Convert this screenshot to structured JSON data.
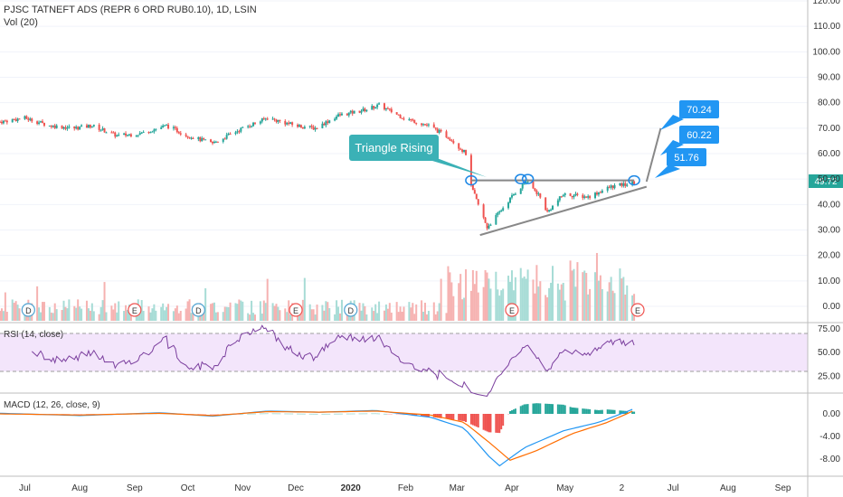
{
  "header": {
    "symbol": "PJSC TATNEFT ADS (REPR 6 ORD RUB0.10), 1D, LSIN",
    "volume": "Vol (20)"
  },
  "rsi": {
    "label": "RSI (14, close)"
  },
  "macd": {
    "label": "MACD (12, 26, close, 9)"
  },
  "annotation": {
    "text": "Triangle Rising"
  },
  "targets": [
    "70.24",
    "60.22",
    "51.76"
  ],
  "last_price": "49.72",
  "price_axis_ticks": [
    "120.00",
    "110.00",
    "100.00",
    "90.00",
    "80.00",
    "70.00",
    "60.00",
    "50.00",
    "40.00",
    "30.00",
    "20.00",
    "10.00",
    "0.00"
  ],
  "rsi_axis_ticks": [
    "75.00",
    "50.00",
    "25.00"
  ],
  "macd_axis_ticks": [
    "0.00",
    "-4.00",
    "-8.00"
  ],
  "time_axis_ticks": [
    "Jul",
    "Aug",
    "Sep",
    "Oct",
    "Nov",
    "Dec",
    "2020",
    "Feb",
    "Mar",
    "Apr",
    "May",
    "2",
    "Jul",
    "Aug",
    "Sep"
  ],
  "event_markers": [
    "D",
    "E",
    "D",
    "E",
    "D",
    "E",
    "E"
  ],
  "colors": {
    "up": "#26a69a",
    "down": "#ef5350",
    "rsi": "#7b3f9e",
    "rsi_band": "#f3e5fb",
    "macd": "#2196f3",
    "signal": "#ff6d00",
    "label_bg": "#2196f3",
    "annotation_bg": "#3bb1b6",
    "trendline": "#888888"
  },
  "chart_data": {
    "type": "candlestick",
    "x_range": [
      "2019-06-17",
      "2020-09-15"
    ],
    "price_ylim": [
      -5,
      125
    ],
    "price_path": [
      [
        "2019-06-17",
        72.5
      ],
      [
        "2019-07-01",
        74
      ],
      [
        "2019-07-15",
        71
      ],
      [
        "2019-07-29",
        70
      ],
      [
        "2019-08-08",
        71
      ],
      [
        "2019-08-22",
        67
      ],
      [
        "2019-09-05",
        68
      ],
      [
        "2019-09-19",
        71
      ],
      [
        "2019-10-01",
        67
      ],
      [
        "2019-10-15",
        64
      ],
      [
        "2019-11-01",
        70
      ],
      [
        "2019-11-15",
        74
      ],
      [
        "2019-12-01",
        71
      ],
      [
        "2019-12-12",
        70
      ],
      [
        "2019-12-25",
        75
      ],
      [
        "2020-01-08",
        77
      ],
      [
        "2020-01-17",
        79
      ],
      [
        "2020-01-31",
        74
      ],
      [
        "2020-02-14",
        71
      ],
      [
        "2020-02-26",
        66
      ],
      [
        "2020-03-06",
        60
      ],
      [
        "2020-03-09",
        47
      ],
      [
        "2020-03-18",
        31
      ],
      [
        "2020-03-25",
        37
      ],
      [
        "2020-04-02",
        44
      ],
      [
        "2020-04-09",
        49
      ],
      [
        "2020-04-16",
        44
      ],
      [
        "2020-04-21",
        37
      ],
      [
        "2020-04-30",
        44
      ],
      [
        "2020-05-14",
        43
      ],
      [
        "2020-05-27",
        47
      ],
      [
        "2020-06-05",
        48
      ],
      [
        "2020-06-09",
        48.5
      ]
    ],
    "volume_ylim": [
      0,
      30
    ],
    "rsi_ylim": [
      0,
      100
    ],
    "rsi_levels": [
      30,
      70
    ],
    "macd_ylim": [
      -10,
      2
    ],
    "macd_path": [
      [
        "2019-06-17",
        0.1
      ],
      [
        "2019-08-01",
        -0.3
      ],
      [
        "2019-09-15",
        0.2
      ],
      [
        "2019-10-15",
        -0.4
      ],
      [
        "2019-11-15",
        0.5
      ],
      [
        "2019-12-15",
        0.3
      ],
      [
        "2020-01-15",
        0.6
      ],
      [
        "2020-02-15",
        -0.6
      ],
      [
        "2020-03-05",
        -2.5
      ],
      [
        "2020-03-19",
        -7.5
      ],
      [
        "2020-03-25",
        -9.2
      ],
      [
        "2020-04-08",
        -6
      ],
      [
        "2020-04-30",
        -3
      ],
      [
        "2020-05-20",
        -1.5
      ],
      [
        "2020-06-09",
        0.9
      ]
    ],
    "signal_path": [
      [
        "2019-06-17",
        0.0
      ],
      [
        "2019-08-01",
        -0.2
      ],
      [
        "2019-09-15",
        0.1
      ],
      [
        "2019-10-15",
        -0.3
      ],
      [
        "2019-11-15",
        0.4
      ],
      [
        "2019-12-15",
        0.3
      ],
      [
        "2020-01-15",
        0.5
      ],
      [
        "2020-02-15",
        -0.2
      ],
      [
        "2020-03-05",
        -1.5
      ],
      [
        "2020-03-19",
        -5
      ],
      [
        "2020-03-31",
        -8.2
      ],
      [
        "2020-04-15",
        -6.5
      ],
      [
        "2020-05-05",
        -3.5
      ],
      [
        "2020-05-25",
        -1.5
      ],
      [
        "2020-06-09",
        0.6
      ]
    ],
    "resistance": {
      "from": [
        "2020-03-09",
        49.5
      ],
      "to": [
        "2020-06-09",
        49.5
      ]
    },
    "support": {
      "from": [
        "2020-03-14",
        28
      ],
      "to": [
        "2020-06-16",
        47
      ]
    },
    "projection": [
      [
        "2020-06-16",
        49
      ],
      [
        "2020-06-24",
        70
      ]
    ]
  }
}
